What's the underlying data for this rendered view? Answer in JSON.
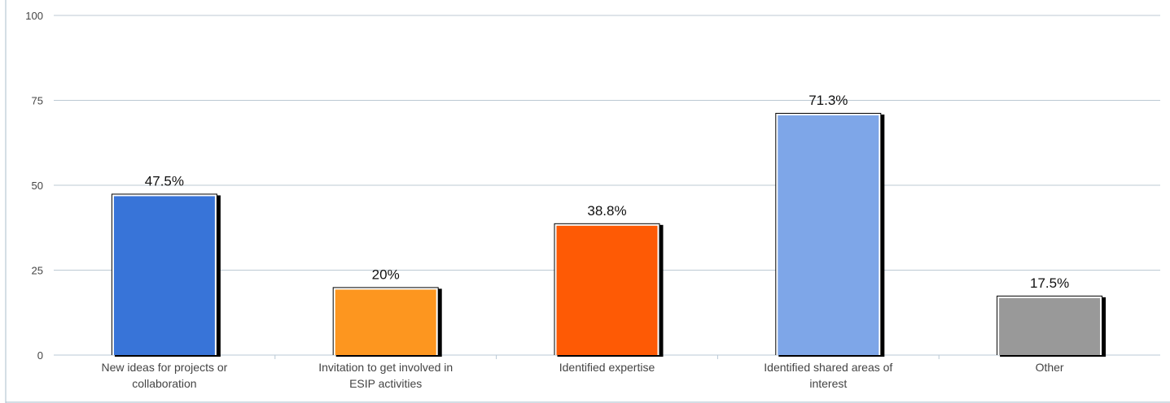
{
  "chart_data": {
    "type": "bar",
    "categories": [
      [
        "New ideas for projects or",
        "collaboration"
      ],
      [
        "Invitation to get involved in",
        "ESIP activities"
      ],
      [
        "Identified expertise"
      ],
      [
        "Identified shared areas of",
        "interest"
      ],
      [
        "Other"
      ]
    ],
    "values": [
      47.5,
      20,
      38.8,
      71.3,
      17.5
    ],
    "data_labels": [
      "47.5%",
      "20%",
      "38.8%",
      "71.3%",
      "17.5%"
    ],
    "colors": [
      "#3874d8",
      "#fd961f",
      "#fe5a05",
      "#7ea6e8",
      "#999999"
    ],
    "ylim": [
      0,
      100
    ],
    "yticks": [
      0,
      25,
      50,
      75,
      100
    ],
    "ytick_labels": [
      "0",
      "25",
      "50",
      "75",
      "100"
    ],
    "grid": true,
    "title": "",
    "xlabel": "",
    "ylabel": ""
  }
}
